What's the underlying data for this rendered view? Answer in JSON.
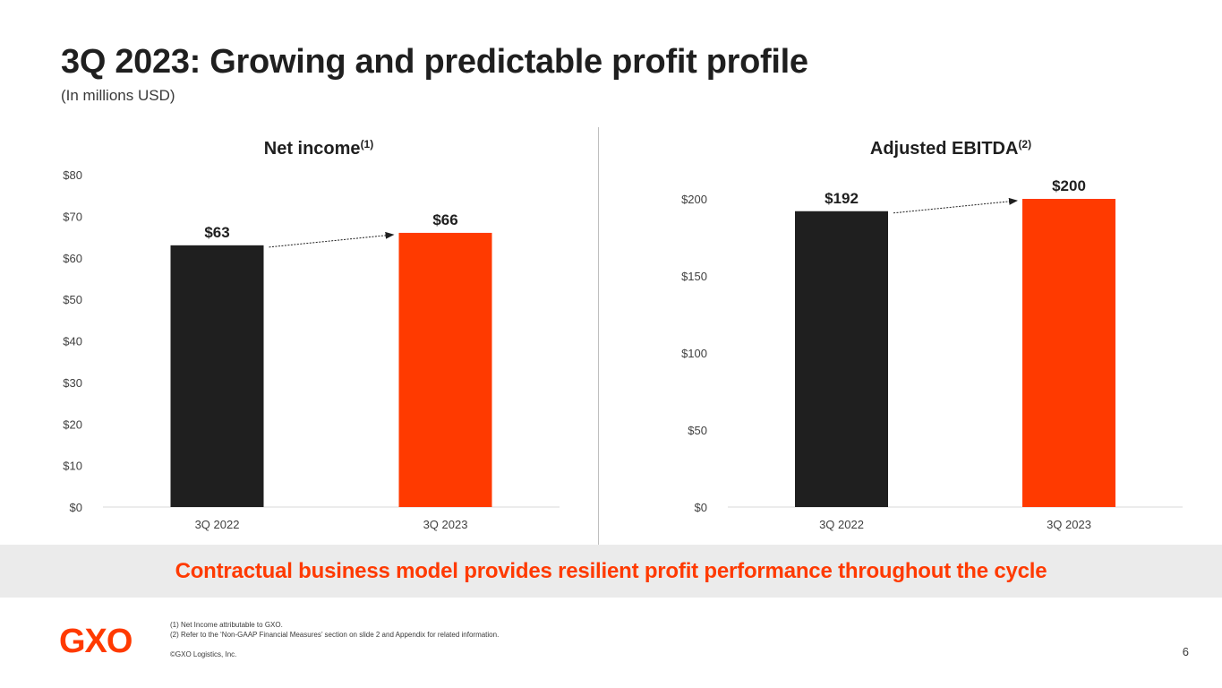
{
  "slide": {
    "title": "3Q 2023: Growing and predictable profit profile",
    "subtitle": "(In millions USD)",
    "banner": "Contractual business model provides resilient profit performance throughout the cycle",
    "footnotes": [
      "(1) Net Income attributable to GXO.",
      "(2) Refer to the ‘Non-GAAP Financial Measures’ section on slide 2 and Appendix for related information."
    ],
    "copyright": "©GXO Logistics, Inc.",
    "page_number": "6",
    "logo_text": "GXO",
    "colors": {
      "accent": "#ff3a00",
      "dark_bar": "#1f1f1f",
      "banner_bg": "#ebebeb"
    }
  },
  "chart_data": [
    {
      "type": "bar",
      "title": "Net income",
      "title_superscript": "(1)",
      "categories": [
        "3Q 2022",
        "3Q 2023"
      ],
      "values": [
        63,
        66
      ],
      "data_labels": [
        "$63",
        "$66"
      ],
      "bar_colors": [
        "#1f1f1f",
        "#ff3a00"
      ],
      "ylim": [
        0,
        80
      ],
      "yticks": [
        0,
        10,
        20,
        30,
        40,
        50,
        60,
        70,
        80
      ],
      "ytick_labels": [
        "$0",
        "$10",
        "$20",
        "$30",
        "$40",
        "$50",
        "$60",
        "$70",
        "$80"
      ],
      "trend_arrow": true,
      "xlabel": "",
      "ylabel": ""
    },
    {
      "type": "bar",
      "title": "Adjusted EBITDA",
      "title_superscript": "(2)",
      "categories": [
        "3Q 2022",
        "3Q 2023"
      ],
      "values": [
        192,
        200
      ],
      "data_labels": [
        "$192",
        "$200"
      ],
      "bar_colors": [
        "#1f1f1f",
        "#ff3a00"
      ],
      "ylim": [
        0,
        200
      ],
      "yticks": [
        0,
        50,
        100,
        150,
        200
      ],
      "ytick_labels": [
        "$0",
        "$50",
        "$100",
        "$150",
        "$200"
      ],
      "trend_arrow": true,
      "xlabel": "",
      "ylabel": ""
    }
  ]
}
